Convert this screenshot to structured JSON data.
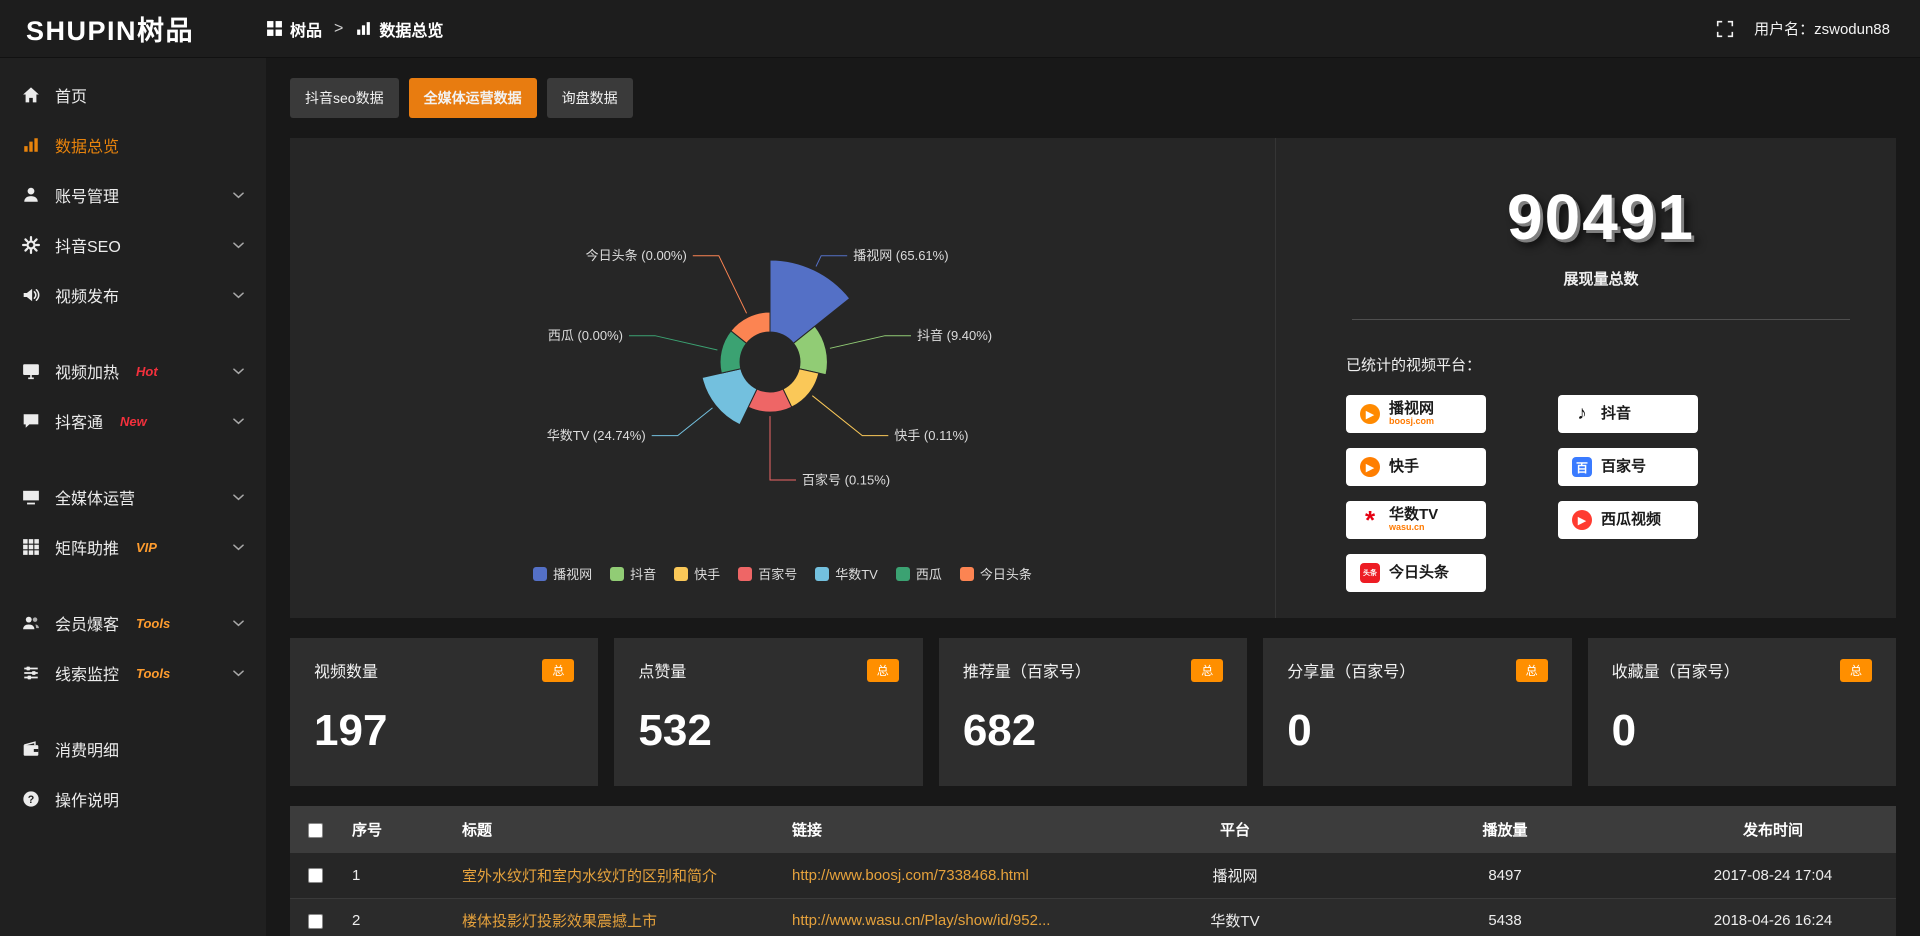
{
  "colors": {
    "accent_orange": "#e8830c",
    "tab_active": "#e87c10",
    "badge_orange": "#ff8f00",
    "link_orange": "#e6a23c"
  },
  "topbar": {
    "logo_text": "SHUPIN",
    "logo_suffix": "树品",
    "breadcrumb": [
      {
        "label": "树品",
        "icon": "grid-icon"
      },
      {
        "label": "数据总览",
        "icon": "chart-icon"
      }
    ],
    "breadcrumb_separator": ">",
    "username": "用户名：zswodun88"
  },
  "sidebar": {
    "items": [
      {
        "label": "首页",
        "icon": "home-icon"
      },
      {
        "label": "数据总览",
        "icon": "chart-icon",
        "active": true
      },
      {
        "label": "账号管理",
        "icon": "user-icon",
        "chevron": true
      },
      {
        "label": "抖音SEO",
        "icon": "gear-icon",
        "chevron": true
      },
      {
        "label": "视频发布",
        "icon": "speaker-icon",
        "chevron": true
      },
      {
        "label": "视频加热",
        "icon": "monitor-icon",
        "tag": "Hot",
        "tag_color": "red",
        "chevron": true,
        "group_start": true
      },
      {
        "label": "抖客通",
        "icon": "chat-icon",
        "tag": "New",
        "tag_color": "red",
        "chevron": true
      },
      {
        "label": "全媒体运营",
        "icon": "screen-icon",
        "chevron": true,
        "group_start": true
      },
      {
        "label": "矩阵助推",
        "icon": "grid9-icon",
        "tag": "VIP",
        "tag_color": "orange",
        "chevron": true
      },
      {
        "label": "会员爆客",
        "icon": "users-icon",
        "tag": "Tools",
        "tag_color": "orange",
        "chevron": true,
        "group_start": true
      },
      {
        "label": "线索监控",
        "icon": "sliders-icon",
        "tag": "Tools",
        "tag_color": "orange",
        "chevron": true
      },
      {
        "label": "消费明细",
        "icon": "wallet-icon",
        "group_start": true
      },
      {
        "label": "操作说明",
        "icon": "question-icon"
      }
    ]
  },
  "tabs": [
    {
      "label": "抖音seo数据",
      "active": false
    },
    {
      "label": "全媒体运营数据",
      "active": true
    },
    {
      "label": "询盘数据",
      "active": false
    }
  ],
  "chart_data": {
    "type": "pie",
    "subtype": "nightingale-rose-donut",
    "title": "",
    "legend_position": "bottom",
    "items": [
      {
        "name": "播视网",
        "pct": 65.61,
        "color": "#5470c6"
      },
      {
        "name": "抖音",
        "pct": 9.4,
        "color": "#91cc75"
      },
      {
        "name": "快手",
        "pct": 0.11,
        "color": "#fac858"
      },
      {
        "name": "百家号",
        "pct": 0.15,
        "color": "#ee6666"
      },
      {
        "name": "华数TV",
        "pct": 24.74,
        "color": "#73c0de"
      },
      {
        "name": "西瓜",
        "pct": 0.0,
        "color": "#3ba272"
      },
      {
        "name": "今日头条",
        "pct": 0.0,
        "color": "#fc8452"
      }
    ]
  },
  "summary": {
    "total_value": "90491",
    "total_label": "展现量总数",
    "platforms_title": "已统计的视频平台：",
    "platforms": [
      {
        "name": "播视网",
        "sub": "boosj.com",
        "icon": "bosj-icon",
        "col": 0
      },
      {
        "name": "快手",
        "sub": "",
        "icon": "kuaishou-icon",
        "col": 0
      },
      {
        "name": "华数TV",
        "sub": "wasu.cn",
        "icon": "washu-icon",
        "col": 0
      },
      {
        "name": "今日头条",
        "sub": "",
        "icon": "toutiao-icon",
        "col": 0
      },
      {
        "name": "抖音",
        "sub": "",
        "icon": "douyin-icon",
        "col": 1
      },
      {
        "name": "百家号",
        "sub": "",
        "icon": "baijiahao-icon",
        "col": 1
      },
      {
        "name": "西瓜视频",
        "sub": "",
        "icon": "xigua-icon",
        "col": 1
      }
    ]
  },
  "stat_cards": [
    {
      "title": "视频数量",
      "badge": "总",
      "value": "197"
    },
    {
      "title": "点赞量",
      "badge": "总",
      "value": "532"
    },
    {
      "title": "推荐量（百家号）",
      "badge": "总",
      "value": "682"
    },
    {
      "title": "分享量（百家号）",
      "badge": "总",
      "value": "0"
    },
    {
      "title": "收藏量（百家号）",
      "badge": "总",
      "value": "0"
    }
  ],
  "table": {
    "columns": [
      "序号",
      "标题",
      "链接",
      "平台",
      "播放量",
      "发布时间"
    ],
    "rows": [
      {
        "index": "1",
        "title": "室外水纹灯和室内水纹灯的区别和简介",
        "link": "http://www.boosj.com/7338468.html",
        "platform": "播视网",
        "plays": "8497",
        "publish_time": "2017-08-24 17:04"
      },
      {
        "index": "2",
        "title": "楼体投影灯投影效果震撼上市",
        "link": "http://www.wasu.cn/Play/show/id/952...",
        "platform": "华数TV",
        "plays": "5438",
        "publish_time": "2018-04-26 16:24"
      }
    ]
  }
}
